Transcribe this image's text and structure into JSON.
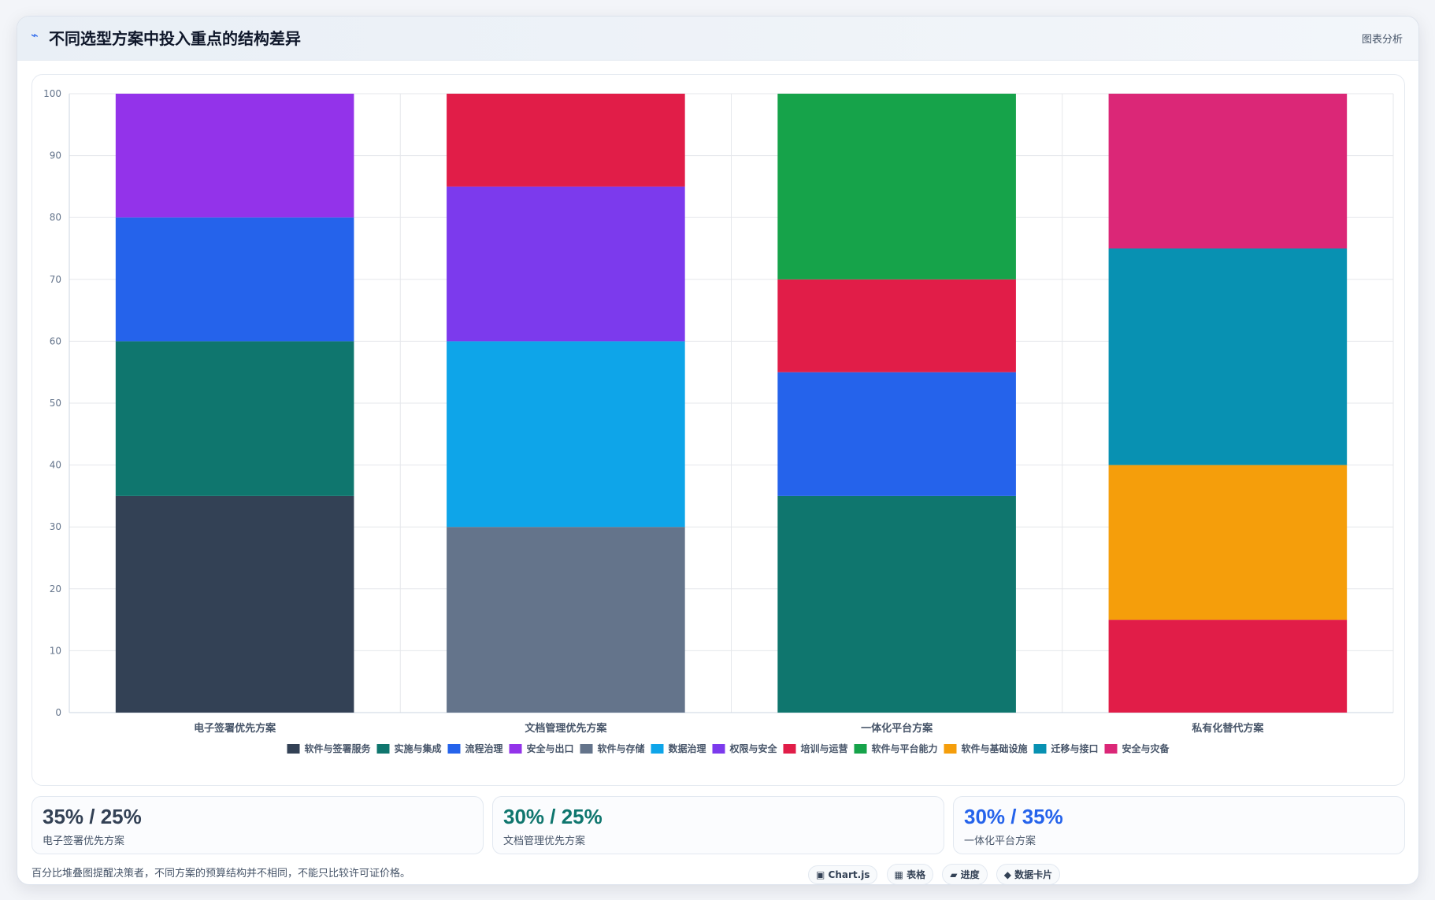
{
  "header": {
    "icon": "chart-line-icon",
    "title": "不同选型方案中投入重点的结构差异",
    "tag": "图表分析"
  },
  "chart_data": {
    "type": "bar",
    "stacked": true,
    "categories": [
      "电子签署优先方案",
      "文档管理优先方案",
      "一体化平台方案",
      "私有化替代方案"
    ],
    "ylim": [
      0,
      100
    ],
    "yticks": [
      0,
      10,
      20,
      30,
      40,
      50,
      60,
      70,
      80,
      90,
      100
    ],
    "grid": true,
    "legend_position": "bottom",
    "series": [
      {
        "name": "软件与签署服务",
        "color": "#334155",
        "values": [
          35,
          0,
          0,
          0
        ]
      },
      {
        "name": "实施与集成",
        "color": "#0f766e",
        "values": [
          25,
          0,
          35,
          0
        ]
      },
      {
        "name": "流程治理",
        "color": "#2563eb",
        "values": [
          20,
          0,
          20,
          0
        ]
      },
      {
        "name": "安全与出口",
        "color": "#9333ea",
        "values": [
          20,
          0,
          0,
          0
        ]
      },
      {
        "name": "软件与存储",
        "color": "#64748b",
        "values": [
          0,
          30,
          0,
          0
        ]
      },
      {
        "name": "数据治理",
        "color": "#0ea5e9",
        "values": [
          0,
          30,
          0,
          0
        ]
      },
      {
        "name": "权限与安全",
        "color": "#7c3aed",
        "values": [
          0,
          25,
          0,
          0
        ]
      },
      {
        "name": "培训与运营",
        "color": "#e11d48",
        "values": [
          0,
          15,
          15,
          15
        ]
      },
      {
        "name": "软件与平台能力",
        "color": "#16a34a",
        "values": [
          0,
          0,
          30,
          0
        ]
      },
      {
        "name": "软件与基础设施",
        "color": "#f59e0b",
        "values": [
          0,
          0,
          0,
          25
        ]
      },
      {
        "name": "迁移与接口",
        "color": "#0891b2",
        "values": [
          0,
          0,
          0,
          35
        ]
      },
      {
        "name": "安全与灾备",
        "color": "#db2777",
        "values": [
          0,
          0,
          0,
          25
        ]
      }
    ],
    "stack_order": [
      [
        "软件与签署服务",
        "实施与集成",
        "流程治理",
        "安全与出口"
      ],
      [
        "软件与存储",
        "数据治理",
        "权限与安全",
        "培训与运营"
      ],
      [
        "实施与集成",
        "流程治理",
        "培训与运营",
        "软件与平台能力"
      ],
      [
        "培训与运营",
        "软件与基础设施",
        "迁移与接口",
        "安全与灾备"
      ]
    ]
  },
  "stats": [
    {
      "value": "35% / 25%",
      "label": "电子签署优先方案",
      "color": "#334155"
    },
    {
      "value": "30% / 25%",
      "label": "文档管理优先方案",
      "color": "#0f766e"
    },
    {
      "value": "30% / 35%",
      "label": "一体化平台方案",
      "color": "#2563eb"
    }
  ],
  "footnote": "百分比堆叠图提醒决策者，不同方案的预算结构并不相同，不能只比较许可证价格。",
  "chips": [
    {
      "icon": "chart-icon",
      "glyph": "▣",
      "label": "Chart.js"
    },
    {
      "icon": "table-icon",
      "glyph": "▦",
      "label": "表格"
    },
    {
      "icon": "progress-icon",
      "glyph": "▰",
      "label": "进度"
    },
    {
      "icon": "data-card-icon",
      "glyph": "◆",
      "label": "数据卡片"
    }
  ]
}
